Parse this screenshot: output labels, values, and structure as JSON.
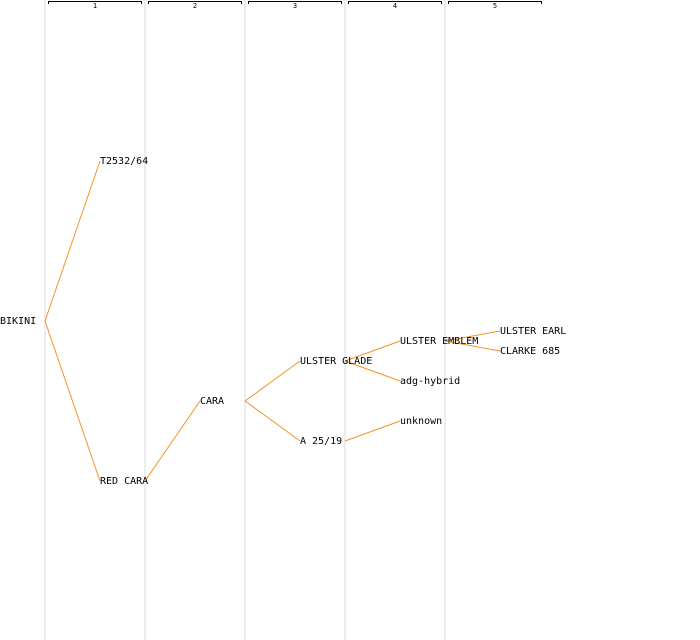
{
  "generations": [
    "1",
    "2",
    "3",
    "4",
    "5"
  ],
  "colors": {
    "link": "#f0952a",
    "divider": "#ededed"
  },
  "nodes": {
    "root": "BIKINI",
    "g1_top": "T2532/64",
    "g1_bottom": "RED CARA",
    "g2": "CARA",
    "g3_top": "ULSTER GLADE",
    "g3_bottom": "A 25/19",
    "g4_top": "ULSTER EMBLEM",
    "g4_mid": "adg-hybrid",
    "g4_bottom": "unknown",
    "g5_top": "ULSTER EARL",
    "g5_bottom": "CLARKE 685"
  }
}
